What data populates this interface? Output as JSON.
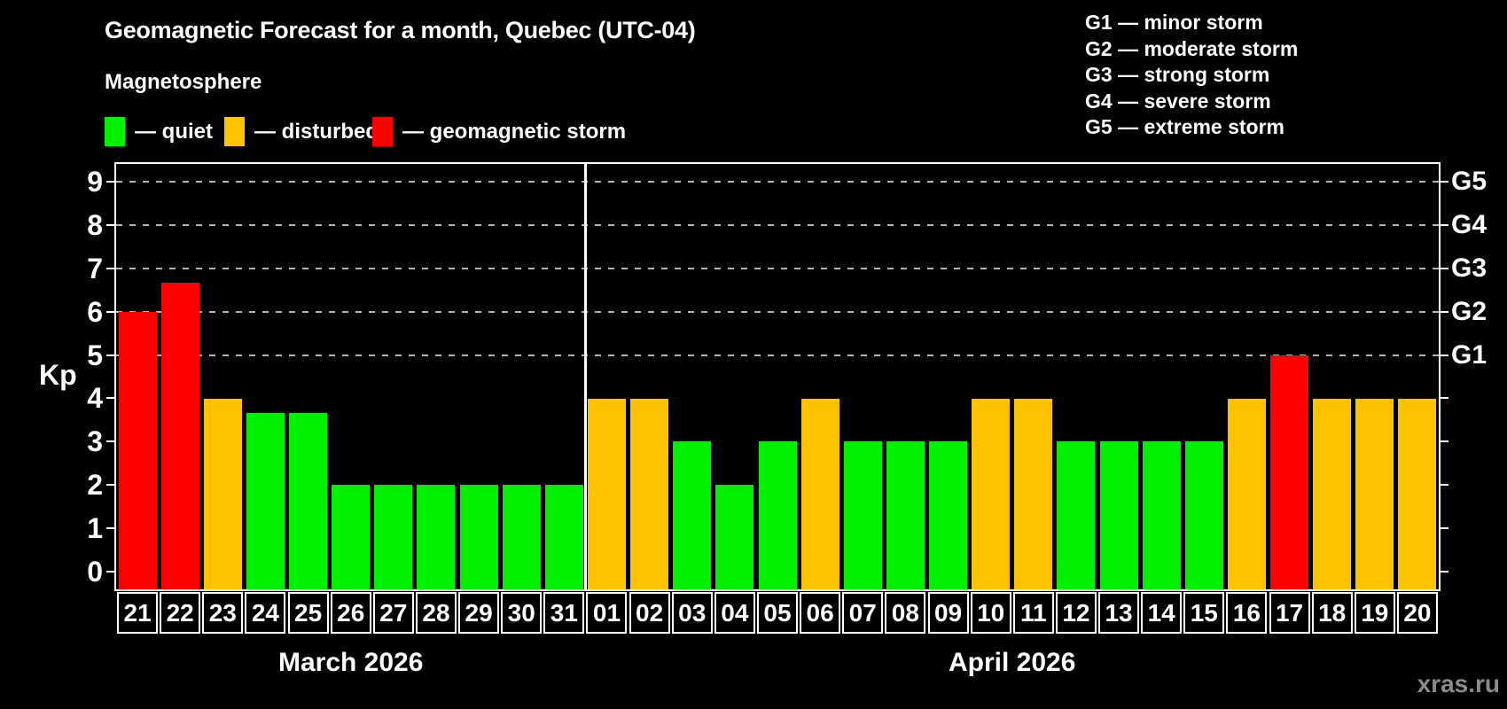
{
  "header": {
    "title": "Geomagnetic Forecast for a month, Quebec (UTC-04)",
    "subtitle": "Magnetosphere"
  },
  "legend": {
    "items": [
      {
        "key": "quiet",
        "label": "— quiet",
        "color": "#00f000"
      },
      {
        "key": "disturbed",
        "label": "— disturbed",
        "color": "#ffc200"
      },
      {
        "key": "storm",
        "label": "— geomagnetic storm",
        "color": "#ff0000"
      }
    ]
  },
  "g_scale_legend": {
    "items": [
      "G1 — minor storm",
      "G2 — moderate storm",
      "G3 — strong storm",
      "G4 — severe storm",
      "G5 — extreme storm"
    ]
  },
  "axis": {
    "ylabel": "Kp"
  },
  "watermark": "xras.ru",
  "chart_data": {
    "type": "bar",
    "title": "Geomagnetic Forecast for a month, Quebec (UTC-04)",
    "ylabel": "Kp",
    "ylim": [
      -0.4,
      9.4
    ],
    "y_ticks": [
      0,
      1,
      2,
      3,
      4,
      5,
      6,
      7,
      8,
      9
    ],
    "gridlines_at_kp": [
      5,
      6,
      7,
      8,
      9
    ],
    "grid": "dashed",
    "legend_position": "top",
    "right_axis": [
      {
        "kp": 5,
        "label": "G1"
      },
      {
        "kp": 6,
        "label": "G2"
      },
      {
        "kp": 7,
        "label": "G3"
      },
      {
        "kp": 8,
        "label": "G4"
      },
      {
        "kp": 9,
        "label": "G5"
      }
    ],
    "status_colors": {
      "quiet": "#00f000",
      "disturbed": "#ffc200",
      "storm": "#ff0000"
    },
    "months": [
      {
        "label": "March 2026",
        "days": [
          {
            "day": "21",
            "kp": 6.0,
            "status": "storm"
          },
          {
            "day": "22",
            "kp": 6.67,
            "status": "storm"
          },
          {
            "day": "23",
            "kp": 4.0,
            "status": "disturbed"
          },
          {
            "day": "24",
            "kp": 3.67,
            "status": "quiet"
          },
          {
            "day": "25",
            "kp": 3.67,
            "status": "quiet"
          },
          {
            "day": "26",
            "kp": 2.0,
            "status": "quiet"
          },
          {
            "day": "27",
            "kp": 2.0,
            "status": "quiet"
          },
          {
            "day": "28",
            "kp": 2.0,
            "status": "quiet"
          },
          {
            "day": "29",
            "kp": 2.0,
            "status": "quiet"
          },
          {
            "day": "30",
            "kp": 2.0,
            "status": "quiet"
          },
          {
            "day": "31",
            "kp": 2.0,
            "status": "quiet"
          }
        ]
      },
      {
        "label": "April 2026",
        "days": [
          {
            "day": "01",
            "kp": 4.0,
            "status": "disturbed"
          },
          {
            "day": "02",
            "kp": 4.0,
            "status": "disturbed"
          },
          {
            "day": "03",
            "kp": 3.0,
            "status": "quiet"
          },
          {
            "day": "04",
            "kp": 2.0,
            "status": "quiet"
          },
          {
            "day": "05",
            "kp": 3.0,
            "status": "quiet"
          },
          {
            "day": "06",
            "kp": 4.0,
            "status": "disturbed"
          },
          {
            "day": "07",
            "kp": 3.0,
            "status": "quiet"
          },
          {
            "day": "08",
            "kp": 3.0,
            "status": "quiet"
          },
          {
            "day": "09",
            "kp": 3.0,
            "status": "quiet"
          },
          {
            "day": "10",
            "kp": 4.0,
            "status": "disturbed"
          },
          {
            "day": "11",
            "kp": 4.0,
            "status": "disturbed"
          },
          {
            "day": "12",
            "kp": 3.0,
            "status": "quiet"
          },
          {
            "day": "13",
            "kp": 3.0,
            "status": "quiet"
          },
          {
            "day": "14",
            "kp": 3.0,
            "status": "quiet"
          },
          {
            "day": "15",
            "kp": 3.0,
            "status": "quiet"
          },
          {
            "day": "16",
            "kp": 4.0,
            "status": "disturbed"
          },
          {
            "day": "17",
            "kp": 5.0,
            "status": "storm"
          },
          {
            "day": "18",
            "kp": 4.0,
            "status": "disturbed"
          },
          {
            "day": "19",
            "kp": 4.0,
            "status": "disturbed"
          },
          {
            "day": "20",
            "kp": 4.0,
            "status": "disturbed"
          }
        ]
      }
    ]
  }
}
